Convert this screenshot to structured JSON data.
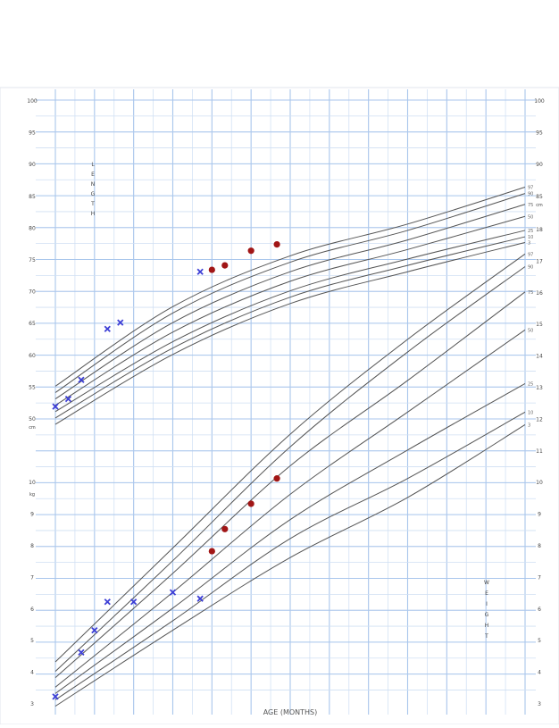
{
  "chart_data": {
    "type": "scatter",
    "title": "",
    "xlabel": "AGE (MONTHS)",
    "x_ticks": [
      0,
      1,
      2,
      3,
      4,
      5,
      6,
      7,
      8,
      9,
      10,
      11,
      12
    ],
    "length": {
      "unit": "cm",
      "letters": [
        "L",
        "E",
        "N",
        "G",
        "T",
        "H"
      ],
      "ylim": [
        50,
        100
      ],
      "left_ticks": [
        "100",
        "95",
        "90",
        "85",
        "80",
        "75",
        "70",
        "65",
        "60",
        "55",
        "50"
      ],
      "right_ticks": [
        "100",
        "95",
        "90",
        "85"
      ],
      "percentiles": [
        "97",
        "90",
        "75",
        "50",
        "25",
        "10",
        "3"
      ],
      "curves": {
        "97": {
          "x": [
            0,
            3,
            6,
            9,
            12
          ],
          "y": [
            55.0,
            67.5,
            75.5,
            80.5,
            86.3
          ]
        },
        "90": {
          "x": [
            0,
            3,
            6,
            9,
            12
          ],
          "y": [
            54.0,
            66.5,
            74.5,
            79.5,
            85.3
          ]
        },
        "75": {
          "x": [
            0,
            3,
            6,
            9,
            12
          ],
          "y": [
            53.0,
            65.0,
            73.0,
            78.0,
            83.6
          ]
        },
        "50": {
          "x": [
            0,
            3,
            6,
            9,
            12
          ],
          "y": [
            52.0,
            63.5,
            71.5,
            76.5,
            81.7
          ]
        },
        "25": {
          "x": [
            0,
            3,
            6,
            9,
            12
          ],
          "y": [
            51.0,
            62.0,
            70.0,
            75.0,
            79.5
          ]
        },
        "10": {
          "x": [
            0,
            3,
            6,
            9,
            12
          ],
          "y": [
            50.0,
            61.0,
            69.0,
            74.0,
            78.5
          ]
        },
        "3": {
          "x": [
            0,
            3,
            6,
            9,
            12
          ],
          "y": [
            49.0,
            60.0,
            68.0,
            73.0,
            77.6
          ]
        }
      }
    },
    "weight": {
      "unit": "kg",
      "letters": [
        "W",
        "E",
        "I",
        "G",
        "H",
        "T"
      ],
      "ylim": [
        3,
        18
      ],
      "left_ticks": [
        "10",
        "9",
        "8",
        "7",
        "6",
        "5",
        "4",
        "3"
      ],
      "right_ticks": [
        "18",
        "17",
        "16",
        "15",
        "14",
        "13",
        "12",
        "11",
        "10",
        "9",
        "8",
        "7",
        "6",
        "5",
        "4",
        "3"
      ],
      "percentiles": [
        "97",
        "90",
        "75",
        "50",
        "25",
        "10",
        "3"
      ],
      "curves": {
        "97": {
          "x": [
            0,
            3,
            6,
            9,
            12
          ],
          "y": [
            4.3,
            7.9,
            11.5,
            14.5,
            17.2
          ]
        },
        "90": {
          "x": [
            0,
            3,
            6,
            9,
            12
          ],
          "y": [
            4.0,
            7.5,
            11.1,
            14.1,
            16.8
          ]
        },
        "75": {
          "x": [
            0,
            3,
            6,
            9,
            12
          ],
          "y": [
            3.8,
            7.1,
            10.5,
            13.2,
            16.0
          ]
        },
        "50": {
          "x": [
            0,
            3,
            6,
            9,
            12
          ],
          "y": [
            3.5,
            6.5,
            9.6,
            12.2,
            14.8
          ]
        },
        "25": {
          "x": [
            0,
            3,
            6,
            9,
            12
          ],
          "y": [
            3.3,
            6.0,
            8.8,
            11.0,
            13.1
          ]
        },
        "10": {
          "x": [
            0,
            3,
            6,
            9,
            12
          ],
          "y": [
            3.1,
            5.6,
            8.2,
            10.1,
            12.2
          ]
        },
        "3": {
          "x": [
            0,
            3,
            6,
            9,
            12
          ],
          "y": [
            2.9,
            5.3,
            7.6,
            9.5,
            11.8
          ]
        }
      }
    },
    "series": [
      {
        "color": "#3d3fd6",
        "marker": "x",
        "panel": "length",
        "x": [
          0.0,
          0.33,
          0.66,
          1.33,
          1.66,
          3.7
        ],
        "y": [
          51.8,
          53.0,
          56.0,
          64.0,
          65.0,
          73.0
        ]
      },
      {
        "color": "#a11616",
        "marker": "dot",
        "panel": "length",
        "x": [
          4.0,
          4.33,
          5.0,
          5.66
        ],
        "y": [
          73.3,
          74.0,
          76.3,
          77.3
        ]
      },
      {
        "color": "#3d3fd6",
        "marker": "x",
        "panel": "weight",
        "x": [
          0.0,
          0.66,
          1.0,
          1.33,
          2.0,
          3.0,
          3.7
        ],
        "y": [
          3.2,
          4.6,
          5.3,
          6.2,
          6.2,
          6.5,
          6.3
        ]
      },
      {
        "color": "#a11616",
        "marker": "dot",
        "panel": "weight",
        "x": [
          4.0,
          4.33,
          5.0,
          5.66
        ],
        "y": [
          7.8,
          8.5,
          9.3,
          10.1
        ]
      }
    ],
    "grid": true
  }
}
